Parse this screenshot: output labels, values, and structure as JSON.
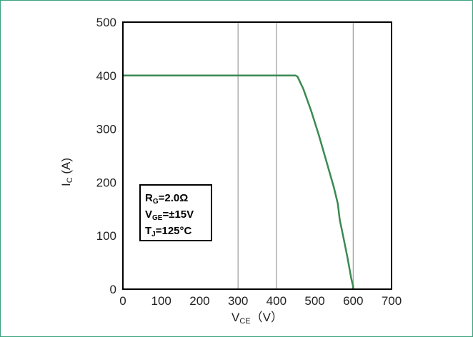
{
  "chart_data": {
    "type": "line",
    "x_ticks": [
      0,
      100,
      200,
      300,
      400,
      500,
      600,
      700
    ],
    "y_ticks": [
      0,
      100,
      200,
      300,
      400,
      500
    ],
    "xlim": [
      0,
      700
    ],
    "ylim": [
      0,
      500
    ],
    "vertical_gridlines_at": [
      300,
      400,
      600
    ],
    "xlabel": {
      "main": "V",
      "sub": "CE",
      "unit": "（V）"
    },
    "ylabel": {
      "main": "I",
      "sub": "C",
      "unit": " (A)"
    },
    "series": [
      {
        "color": "#3a8a52",
        "x": [
          0,
          450,
          455,
          470,
          490,
          510,
          530,
          550,
          560,
          565,
          575,
          585,
          595,
          600,
          600
        ],
        "y": [
          400,
          400,
          398,
          375,
          335,
          290,
          240,
          190,
          160,
          130,
          95,
          60,
          20,
          5,
          0
        ]
      }
    ],
    "annotation": {
      "line1": {
        "main": "R",
        "sub": "G",
        "rest": "=2.0Ω"
      },
      "line2": {
        "main": "V",
        "sub": "GE",
        "rest": "=±15V"
      },
      "line3": {
        "main": "T",
        "sub": "J",
        "rest": "=125°C"
      }
    },
    "colors": {
      "frame": "#3aa37d",
      "curve": "#3a8a52",
      "gridline": "#888888"
    }
  }
}
